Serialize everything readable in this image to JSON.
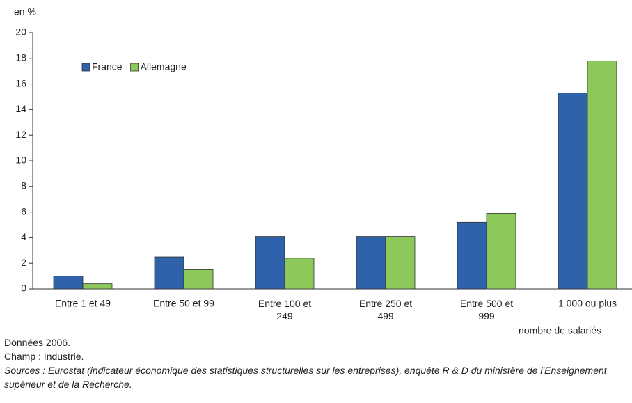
{
  "chart_data": {
    "type": "bar",
    "y_label": "en %",
    "x_label": "nombre de salariés",
    "categories": [
      "Entre 1 et 49",
      "Entre 50 et 99",
      "Entre 100 et\n249",
      "Entre 250 et\n499",
      "Entre 500 et\n999",
      "1 000 ou plus"
    ],
    "series": [
      {
        "name": "France",
        "color": "#2f62ab",
        "values": [
          1.0,
          2.5,
          4.1,
          4.1,
          5.2,
          15.3
        ]
      },
      {
        "name": "Allemagne",
        "color": "#8cc85a",
        "values": [
          0.4,
          1.5,
          2.4,
          4.1,
          5.9,
          17.8
        ]
      }
    ],
    "ylim": [
      0,
      20
    ],
    "yticks": [
      0,
      2,
      4,
      6,
      8,
      10,
      12,
      14,
      16,
      18,
      20
    ],
    "legend": "upper left",
    "notes": [
      "Données 2006.",
      "Champ : Industrie.",
      "Sources : Eurostat (indicateur économique des statistiques structurelles sur les entreprises), enquête R & D du ministère de l'Enseignement supérieur et de la Recherche."
    ]
  }
}
